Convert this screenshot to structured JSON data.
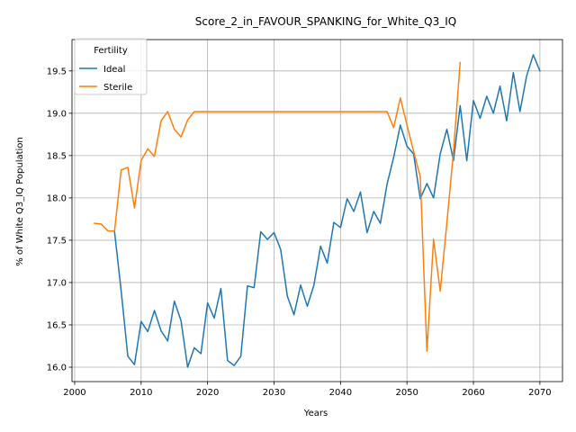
{
  "chart_data": {
    "type": "line",
    "title": "Score_2_in_FAVOUR_SPANKING_for_White_Q3_IQ",
    "xlabel": "Years",
    "ylabel": "% of White Q3_IQ Population",
    "xlim": [
      1999.6,
      2073.4
    ],
    "ylim": [
      15.83,
      19.87
    ],
    "xticks": [
      2000,
      2010,
      2020,
      2030,
      2040,
      2050,
      2060,
      2070
    ],
    "yticks": [
      16.0,
      16.5,
      17.0,
      17.5,
      18.0,
      18.5,
      19.0,
      19.5
    ],
    "xtick_labels": [
      "2000",
      "2010",
      "2020",
      "2030",
      "2040",
      "2050",
      "2060",
      "2070"
    ],
    "ytick_labels": [
      "16.0",
      "16.5",
      "17.0",
      "17.5",
      "18.0",
      "18.5",
      "19.0",
      "19.5"
    ],
    "grid": true,
    "legend": {
      "title": "Fertility",
      "placement": "top-left"
    },
    "series": [
      {
        "name": "Ideal",
        "color": "#1f77b4",
        "x": [
          2006,
          2007,
          2008,
          2009,
          2010,
          2011,
          2012,
          2013,
          2014,
          2015,
          2016,
          2017,
          2018,
          2019,
          2020,
          2021,
          2022,
          2023,
          2024,
          2025,
          2026,
          2027,
          2028,
          2029,
          2030,
          2031,
          2032,
          2033,
          2034,
          2035,
          2036,
          2037,
          2038,
          2039,
          2040,
          2041,
          2042,
          2043,
          2044,
          2045,
          2046,
          2047,
          2048,
          2049,
          2050,
          2051,
          2052,
          2053,
          2054,
          2055,
          2056,
          2057,
          2058,
          2059,
          2060,
          2061,
          2062,
          2063,
          2064,
          2065,
          2066,
          2067,
          2068,
          2069,
          2070
        ],
        "y": [
          17.6,
          16.9,
          16.13,
          16.03,
          16.54,
          16.42,
          16.67,
          16.43,
          16.31,
          16.78,
          16.55,
          16.0,
          16.23,
          16.16,
          16.76,
          16.58,
          16.93,
          16.08,
          16.02,
          16.13,
          16.96,
          16.94,
          17.6,
          17.51,
          17.59,
          17.39,
          16.84,
          16.62,
          16.97,
          16.72,
          16.97,
          17.43,
          17.23,
          17.71,
          17.65,
          17.99,
          17.84,
          18.07,
          17.59,
          17.84,
          17.7,
          18.16,
          18.48,
          18.86,
          18.61,
          18.52,
          17.99,
          18.17,
          18.0,
          18.52,
          18.81,
          18.44,
          19.09,
          18.44,
          19.15,
          18.94,
          19.2,
          19.0,
          19.32,
          18.91,
          19.48,
          19.02,
          19.44,
          19.69,
          19.5
        ]
      },
      {
        "name": "Sterile",
        "color": "#ff7f0e",
        "x": [
          2003,
          2004,
          2005,
          2006,
          2007,
          2008,
          2009,
          2010,
          2011,
          2012,
          2013,
          2014,
          2015,
          2016,
          2017,
          2018,
          2019,
          2020,
          2021,
          2022,
          2023,
          2024,
          2025,
          2026,
          2027,
          2028,
          2029,
          2030,
          2031,
          2032,
          2033,
          2034,
          2035,
          2036,
          2037,
          2038,
          2039,
          2040,
          2041,
          2042,
          2043,
          2044,
          2045,
          2046,
          2047,
          2048,
          2049,
          2050,
          2051,
          2052,
          2053,
          2054,
          2055,
          2056,
          2057,
          2058
        ],
        "y": [
          17.7,
          17.69,
          17.61,
          17.61,
          18.33,
          18.36,
          17.88,
          18.44,
          18.58,
          18.49,
          18.91,
          19.02,
          18.81,
          18.72,
          18.92,
          19.02,
          19.02,
          19.02,
          19.02,
          19.02,
          19.02,
          19.02,
          19.02,
          19.02,
          19.02,
          19.02,
          19.02,
          19.02,
          19.02,
          19.02,
          19.02,
          19.02,
          19.02,
          19.02,
          19.02,
          19.02,
          19.02,
          19.02,
          19.02,
          19.02,
          19.02,
          19.02,
          19.02,
          19.02,
          19.02,
          18.83,
          19.18,
          18.86,
          18.55,
          18.25,
          16.19,
          17.51,
          16.9,
          17.7,
          18.55,
          19.6
        ]
      }
    ]
  }
}
